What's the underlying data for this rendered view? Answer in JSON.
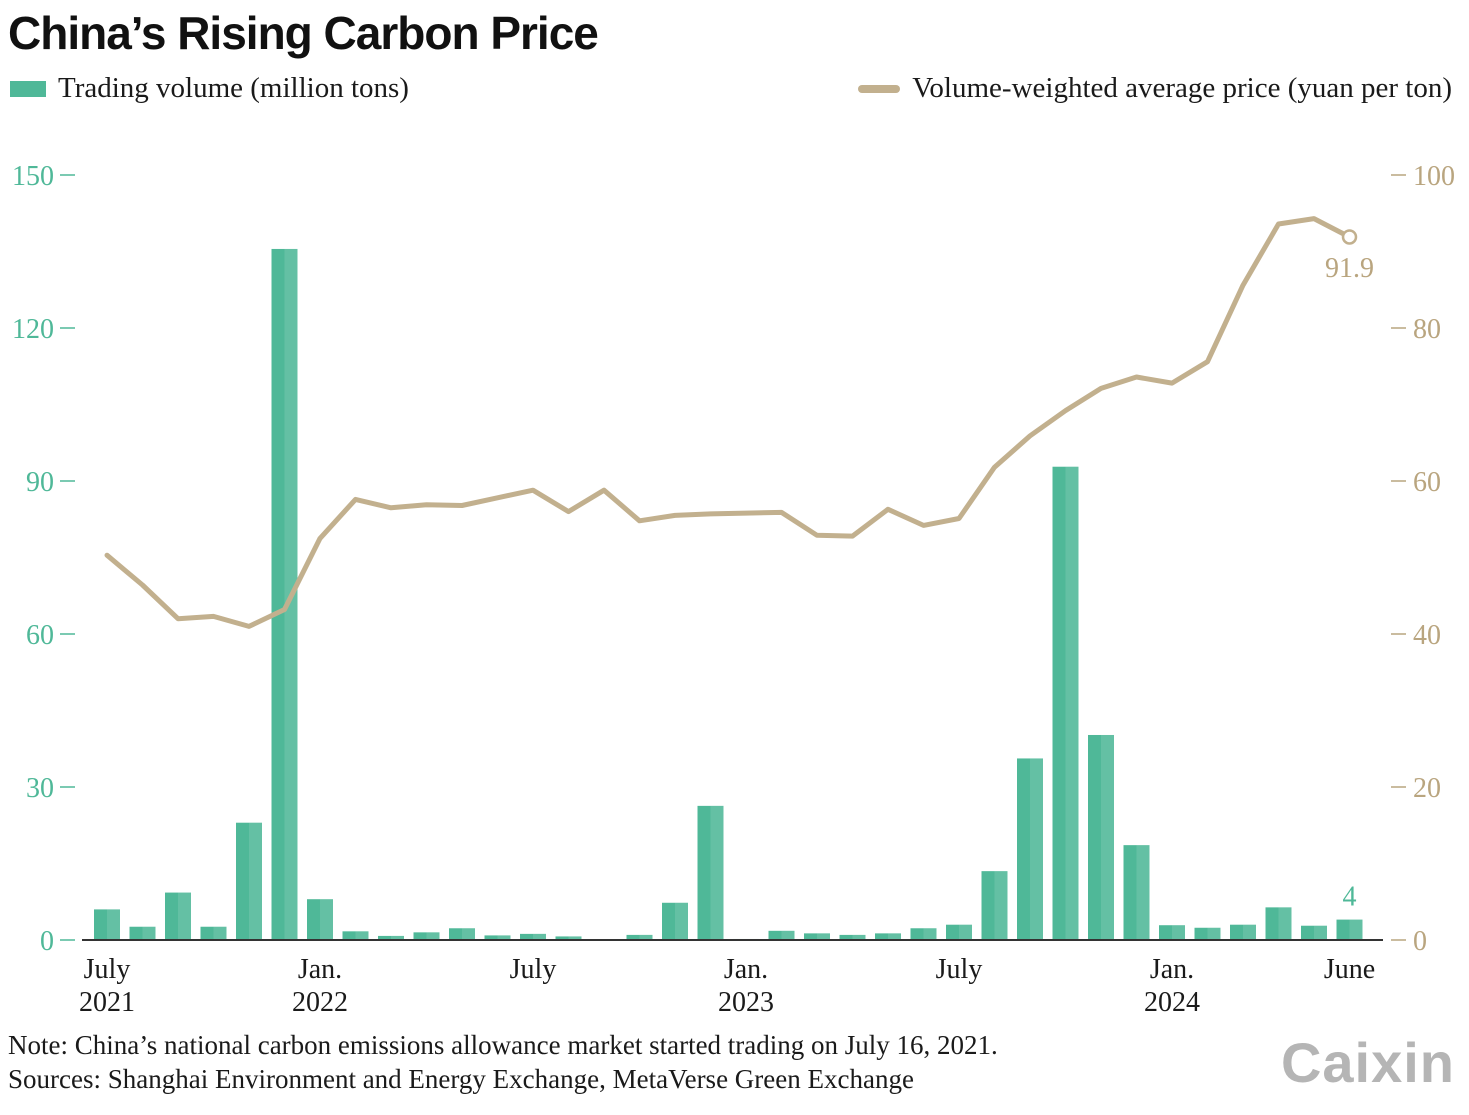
{
  "title": "China’s Rising Carbon Price",
  "legend": {
    "bars": "Trading volume (million tons)",
    "line": "Volume-weighted average price (yuan per ton)"
  },
  "notes": {
    "note": "Note: China’s national carbon emissions allowance market started trading on July 16, 2021.",
    "sources": "Sources: Shanghai Environment and Energy Exchange, MetaVerse Green Exchange"
  },
  "logo": "Caixin",
  "colors": {
    "bars": "#4fb898",
    "line": "#c2b08e",
    "left_axis": "#4fb898",
    "right_axis": "#b9a57f"
  },
  "chart_data": {
    "type": "bar",
    "categories": [
      "2021-07",
      "2021-08",
      "2021-09",
      "2021-10",
      "2021-11",
      "2021-12",
      "2022-01",
      "2022-02",
      "2022-03",
      "2022-04",
      "2022-05",
      "2022-06",
      "2022-07",
      "2022-08",
      "2022-09",
      "2022-10",
      "2022-11",
      "2022-12",
      "2023-01",
      "2023-02",
      "2023-03",
      "2023-04",
      "2023-05",
      "2023-06",
      "2023-07",
      "2023-08",
      "2023-09",
      "2023-10",
      "2023-11",
      "2023-12",
      "2024-01",
      "2024-02",
      "2024-03",
      "2024-04",
      "2024-05",
      "2024-06"
    ],
    "x_tick_labels": [
      {
        "index": 0,
        "line1": "July",
        "line2": "2021"
      },
      {
        "index": 6,
        "line1": "Jan.",
        "line2": "2022"
      },
      {
        "index": 12,
        "line1": "July",
        "line2": ""
      },
      {
        "index": 18,
        "line1": "Jan.",
        "line2": "2023"
      },
      {
        "index": 24,
        "line1": "July",
        "line2": ""
      },
      {
        "index": 30,
        "line1": "Jan.",
        "line2": "2024"
      },
      {
        "index": 35,
        "line1": "June",
        "line2": ""
      }
    ],
    "series": [
      {
        "name": "Trading volume (million tons)",
        "type": "bar",
        "axis": "left",
        "values": [
          6.0,
          2.6,
          9.3,
          2.6,
          23.0,
          135.5,
          8.0,
          1.7,
          0.8,
          1.5,
          2.3,
          0.9,
          1.2,
          0.7,
          0.0,
          1.0,
          7.3,
          26.3,
          0.2,
          1.8,
          1.3,
          1.0,
          1.3,
          2.3,
          3.0,
          13.5,
          35.6,
          92.8,
          40.2,
          18.6,
          2.9,
          2.4,
          3.0,
          6.4,
          2.8,
          4.0
        ]
      },
      {
        "name": "Volume-weighted average price (yuan per ton)",
        "type": "line",
        "axis": "right",
        "values": [
          50.3,
          46.4,
          42.0,
          42.3,
          41.0,
          43.2,
          52.5,
          57.6,
          56.5,
          56.9,
          56.8,
          57.8,
          58.8,
          56.0,
          58.8,
          54.8,
          55.5,
          55.7,
          55.8,
          55.9,
          52.9,
          52.8,
          56.3,
          54.2,
          55.1,
          61.8,
          65.9,
          69.2,
          72.1,
          73.6,
          72.8,
          75.6,
          85.6,
          93.6,
          94.3,
          91.9
        ]
      }
    ],
    "annotations": {
      "last_volume": "4",
      "last_price": "91.9"
    },
    "y_left": {
      "ticks": [
        "0",
        "30",
        "60",
        "90",
        "120",
        "150"
      ],
      "values": [
        0,
        30,
        60,
        90,
        120,
        150
      ],
      "lim": [
        0,
        150
      ]
    },
    "y_right": {
      "ticks": [
        "0",
        "20",
        "40",
        "60",
        "80",
        "100"
      ],
      "values": [
        0,
        20,
        40,
        60,
        80,
        100
      ],
      "lim": [
        0,
        100
      ]
    },
    "grid": false,
    "legend_position": "top"
  }
}
